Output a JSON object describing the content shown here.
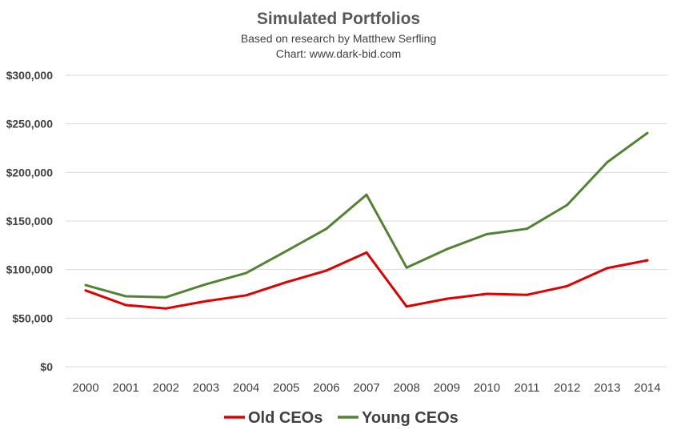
{
  "chart_data": {
    "type": "line",
    "title": "Simulated Portfolios",
    "subtitle_lines": [
      "Based on research by Matthew Serfling",
      "Chart: www.dark-bid.com"
    ],
    "xlabel": "",
    "ylabel": "",
    "x": [
      "2000",
      "2001",
      "2002",
      "2003",
      "2004",
      "2005",
      "2006",
      "2007",
      "2008",
      "2009",
      "2010",
      "2011",
      "2012",
      "2013",
      "2014"
    ],
    "y_ticks": [
      0,
      50000,
      100000,
      150000,
      200000,
      250000,
      300000
    ],
    "y_tick_labels": [
      "$0",
      "$50,000",
      "$100,000",
      "$150,000",
      "$200,000",
      "$250,000",
      "$300,000"
    ],
    "ylim": [
      0,
      300000
    ],
    "grid": true,
    "legend_position": "bottom",
    "series": [
      {
        "name": "Old CEOs",
        "color": "#e00000",
        "values": [
          78500,
          63500,
          60000,
          67500,
          73500,
          87000,
          99000,
          117500,
          62000,
          70000,
          75000,
          74000,
          83000,
          101500,
          109500
        ]
      },
      {
        "name": "Young CEOs",
        "color": "#548235",
        "values": [
          84000,
          72500,
          71500,
          85000,
          96500,
          119000,
          142000,
          177000,
          102000,
          121000,
          136500,
          142000,
          166500,
          210500,
          240500
        ]
      }
    ]
  }
}
